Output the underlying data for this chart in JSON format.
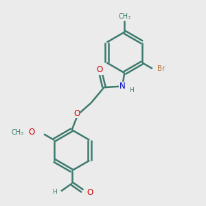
{
  "bg_color": "#ebebeb",
  "bond_color": "#3d7a6e",
  "bond_width": 1.8,
  "atom_colors": {
    "O": "#cc0000",
    "N": "#0000cc",
    "Br": "#b87333",
    "C": "#3d7a6e",
    "H": "#3d7a6e"
  },
  "font_size": 8.5,
  "small_font_size": 7.0
}
